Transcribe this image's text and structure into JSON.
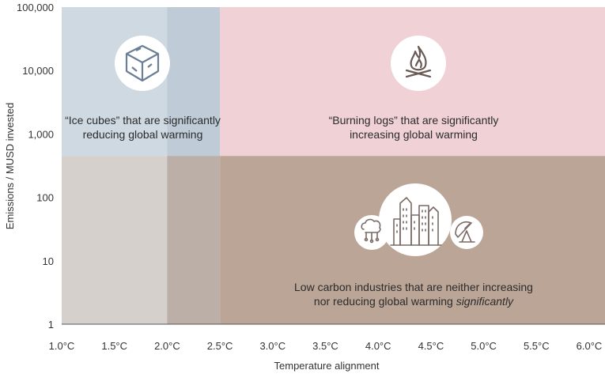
{
  "chart_data": {
    "type": "quadrant",
    "xlabel": "Temperature alignment",
    "ylabel": "Emissions / MUSD invested",
    "x_ticks": [
      "1.0°C",
      "1.5°C",
      "2.0°C",
      "2.5°C",
      "3.0°C",
      "3.5°C",
      "4.0°C",
      "4.5°C",
      "5.0°C",
      "5.5°C",
      "6.0°C"
    ],
    "y_ticks": [
      "100,000",
      "10,000",
      "1,000",
      "100",
      "10",
      "1"
    ],
    "xlim": [
      1.0,
      6.0
    ],
    "ylim": [
      1,
      100000
    ],
    "y_scale": "log",
    "x_split_low": 2.0,
    "x_split_high": 2.5,
    "y_split": 450,
    "zones": [
      {
        "name": "ice-cubes",
        "x": [
          1.0,
          2.5
        ],
        "y": [
          450,
          100000
        ],
        "color": "#cfd9e2",
        "label_lines": [
          "“Ice cubes” that are significantly",
          "reducing global warming"
        ],
        "icon": "ice-cube-icon"
      },
      {
        "name": "burning-logs",
        "x": [
          2.5,
          6.0
        ],
        "y": [
          450,
          100000
        ],
        "color": "#efd1d6",
        "label_lines": [
          "“Burning logs” that are significantly",
          "increasing global warming"
        ],
        "icon": "campfire-icon"
      },
      {
        "name": "low-carbon",
        "x": [
          2.5,
          6.0
        ],
        "y": [
          1,
          450
        ],
        "color": "#bba597",
        "label_lines": [
          "Low carbon industries that are neither increasing",
          "nor reducing global warming"
        ],
        "label_emphasis": "significantly",
        "icon": "industry-icons"
      },
      {
        "name": "lower-left",
        "x": [
          1.0,
          2.5
        ],
        "y": [
          1,
          450
        ],
        "color": "#d6d0cd"
      }
    ],
    "overlay_band": {
      "x": [
        2.0,
        2.5
      ],
      "colors": {
        "upper": "#bfccd8",
        "lower": "#bcafa8"
      }
    }
  }
}
